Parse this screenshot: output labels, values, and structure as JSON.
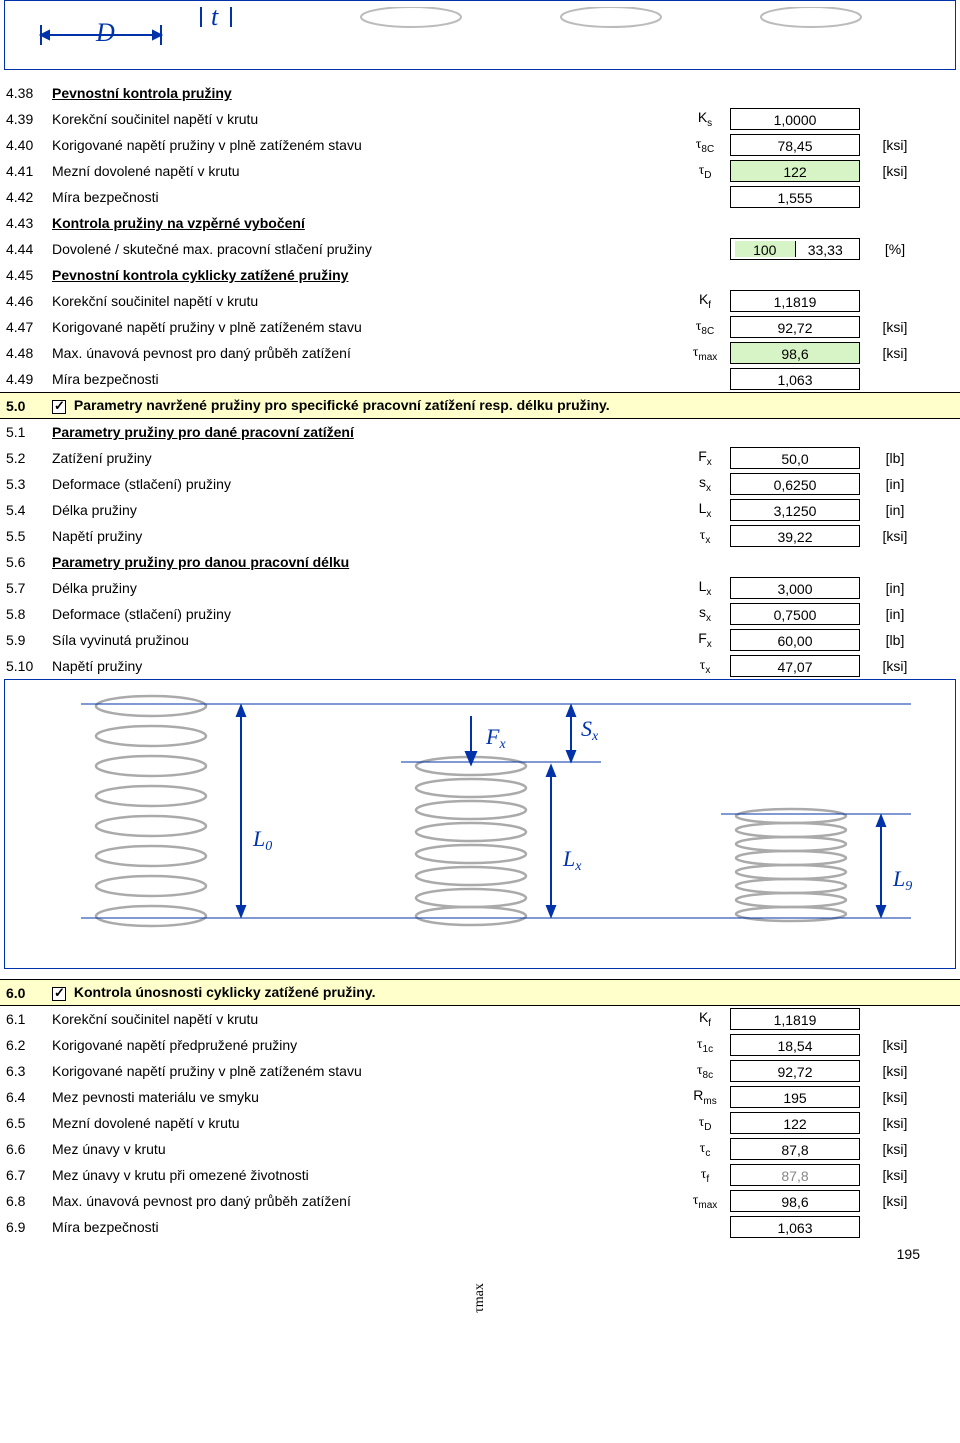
{
  "topDiagram": {
    "D_label": "D",
    "t_label": "t",
    "stroke": "#0033aa"
  },
  "sec4": {
    "title": "Pevnostní kontrola pružiny",
    "rows": [
      {
        "n": "4.38",
        "desc": "Pevnostní kontrola pružiny",
        "hdr": true
      },
      {
        "n": "4.39",
        "desc": "Korekční součinitel napětí v krutu",
        "sym": "K",
        "sub": "s",
        "val": "1,0000",
        "box": true
      },
      {
        "n": "4.40",
        "desc": "Korigované napětí pružiny v plně zatíženém stavu",
        "greek": "τ",
        "sub": "8C",
        "val": "78,45",
        "unit": "[ksi]",
        "box": true
      },
      {
        "n": "4.41",
        "desc": "Mezní dovolené napětí v krutu",
        "greek": "τ",
        "sub": "D",
        "val": "122",
        "unit": "[ksi]",
        "box": true,
        "green": true
      },
      {
        "n": "4.42",
        "desc": "Míra bezpečnosti",
        "val": "1,555",
        "box": true
      },
      {
        "n": "4.43",
        "desc": "Kontrola pružiny na vzpěrné vybočení",
        "hdr": true
      },
      {
        "n": "4.44",
        "desc": "Dovolené / skutečné max. pracovní stlačení pružiny",
        "split_a": "100",
        "split_b": "33,33",
        "unit": "[%]",
        "split": true
      },
      {
        "n": "4.45",
        "desc": "Pevnostní kontrola cyklicky zatížené pružiny",
        "hdr": true
      },
      {
        "n": "4.46",
        "desc": "Korekční součinitel napětí v krutu",
        "sym": "K",
        "sub": "f",
        "val": "1,1819",
        "box": true
      },
      {
        "n": "4.47",
        "desc": "Korigované napětí pružiny v plně zatíženém stavu",
        "greek": "τ",
        "sub": "8C",
        "val": "92,72",
        "unit": "[ksi]",
        "box": true
      },
      {
        "n": "4.48",
        "desc": "Max. únavová pevnost pro daný průběh zatížení",
        "greek": "τ",
        "sub": "max",
        "val": "98,6",
        "unit": "[ksi]",
        "box": true,
        "green": true
      },
      {
        "n": "4.49",
        "desc": "Míra bezpečnosti",
        "val": "1,063",
        "box": true
      }
    ]
  },
  "sec5": {
    "bar": "Parametry navržené pružiny pro specifické pracovní zatížení resp. délku pružiny.",
    "rows": [
      {
        "n": "5.1",
        "desc": "Parametry pružiny pro dané pracovní zatížení",
        "hdr": true
      },
      {
        "n": "5.2",
        "desc": "Zatížení pružiny",
        "sym": "F",
        "sub": "x",
        "val": "50,0",
        "unit": "[lb]",
        "box": true
      },
      {
        "n": "5.3",
        "desc": "Deformace (stlačení) pružiny",
        "sym": "s",
        "sub": "x",
        "val": "0,6250",
        "unit": "[in]",
        "box": true
      },
      {
        "n": "5.4",
        "desc": "Délka pružiny",
        "sym": "L",
        "sub": "x",
        "val": "3,1250",
        "unit": "[in]",
        "box": true
      },
      {
        "n": "5.5",
        "desc": "Napětí pružiny",
        "greek": "τ",
        "sub": "x",
        "val": "39,22",
        "unit": "[ksi]",
        "box": true
      },
      {
        "n": "5.6",
        "desc": "Parametry pružiny pro danou pracovní délku",
        "hdr": true
      },
      {
        "n": "5.7",
        "desc": "Délka pružiny",
        "sym": "L",
        "sub": "x",
        "val": "3,000",
        "unit": "[in]",
        "box": true
      },
      {
        "n": "5.8",
        "desc": "Deformace (stlačení) pružiny",
        "sym": "s",
        "sub": "x",
        "val": "0,7500",
        "unit": "[in]",
        "box": true
      },
      {
        "n": "5.9",
        "desc": "Síla vyvinutá pružinou",
        "sym": "F",
        "sub": "x",
        "val": "60,00",
        "unit": "[lb]",
        "box": true
      },
      {
        "n": "5.10",
        "desc": "Napětí pružiny",
        "greek": "τ",
        "sub": "x",
        "val": "47,07",
        "unit": "[ksi]",
        "box": true
      }
    ]
  },
  "springDiagram": {
    "Fx": "Fx",
    "Sx": "Sx",
    "L0": "L0",
    "Lx": "Lx",
    "L9": "L9",
    "stroke": "#999999",
    "arrow": "#0033aa"
  },
  "sec6": {
    "bar": "Kontrola únosnosti cyklicky zatížené pružiny.",
    "rows": [
      {
        "n": "6.1",
        "desc": "Korekční součinitel napětí v krutu",
        "sym": "K",
        "sub": "f",
        "val": "1,1819",
        "box": true
      },
      {
        "n": "6.2",
        "desc": "Korigované napětí předpružené pružiny",
        "greek": "τ",
        "sub": "1c",
        "val": "18,54",
        "unit": "[ksi]",
        "box": true
      },
      {
        "n": "6.3",
        "desc": "Korigované napětí pružiny v plně zatíženém stavu",
        "greek": "τ",
        "sub": "8c",
        "val": "92,72",
        "unit": "[ksi]",
        "box": true
      },
      {
        "n": "6.4",
        "desc": "Mez pevnosti materiálu ve smyku",
        "sym": "R",
        "sub": "ms",
        "val": "195",
        "unit": "[ksi]",
        "box": true
      },
      {
        "n": "6.5",
        "desc": "Mezní dovolené napětí v krutu",
        "greek": "τ",
        "sub": "D",
        "val": "122",
        "unit": "[ksi]",
        "box": true
      },
      {
        "n": "6.6",
        "desc": "Mez únavy v krutu",
        "greek": "τ",
        "sub": "c",
        "val": "87,8",
        "unit": "[ksi]",
        "box": true
      },
      {
        "n": "6.7",
        "desc": "Mez únavy v krutu při omezené životnosti",
        "greek": "τ",
        "sub": "f",
        "val": "87,8",
        "unit": "[ksi]",
        "box": true,
        "gray": true
      },
      {
        "n": "6.8",
        "desc": "Max. únavová pevnost pro daný průběh zatížení",
        "greek": "τ",
        "sub": "max",
        "val": "98,6",
        "unit": "[ksi]",
        "box": true
      },
      {
        "n": "6.9",
        "desc": "Míra bezpečnosti",
        "val": "1,063",
        "box": true
      }
    ]
  },
  "footer": {
    "tau_max": "τmax",
    "page": "195"
  }
}
